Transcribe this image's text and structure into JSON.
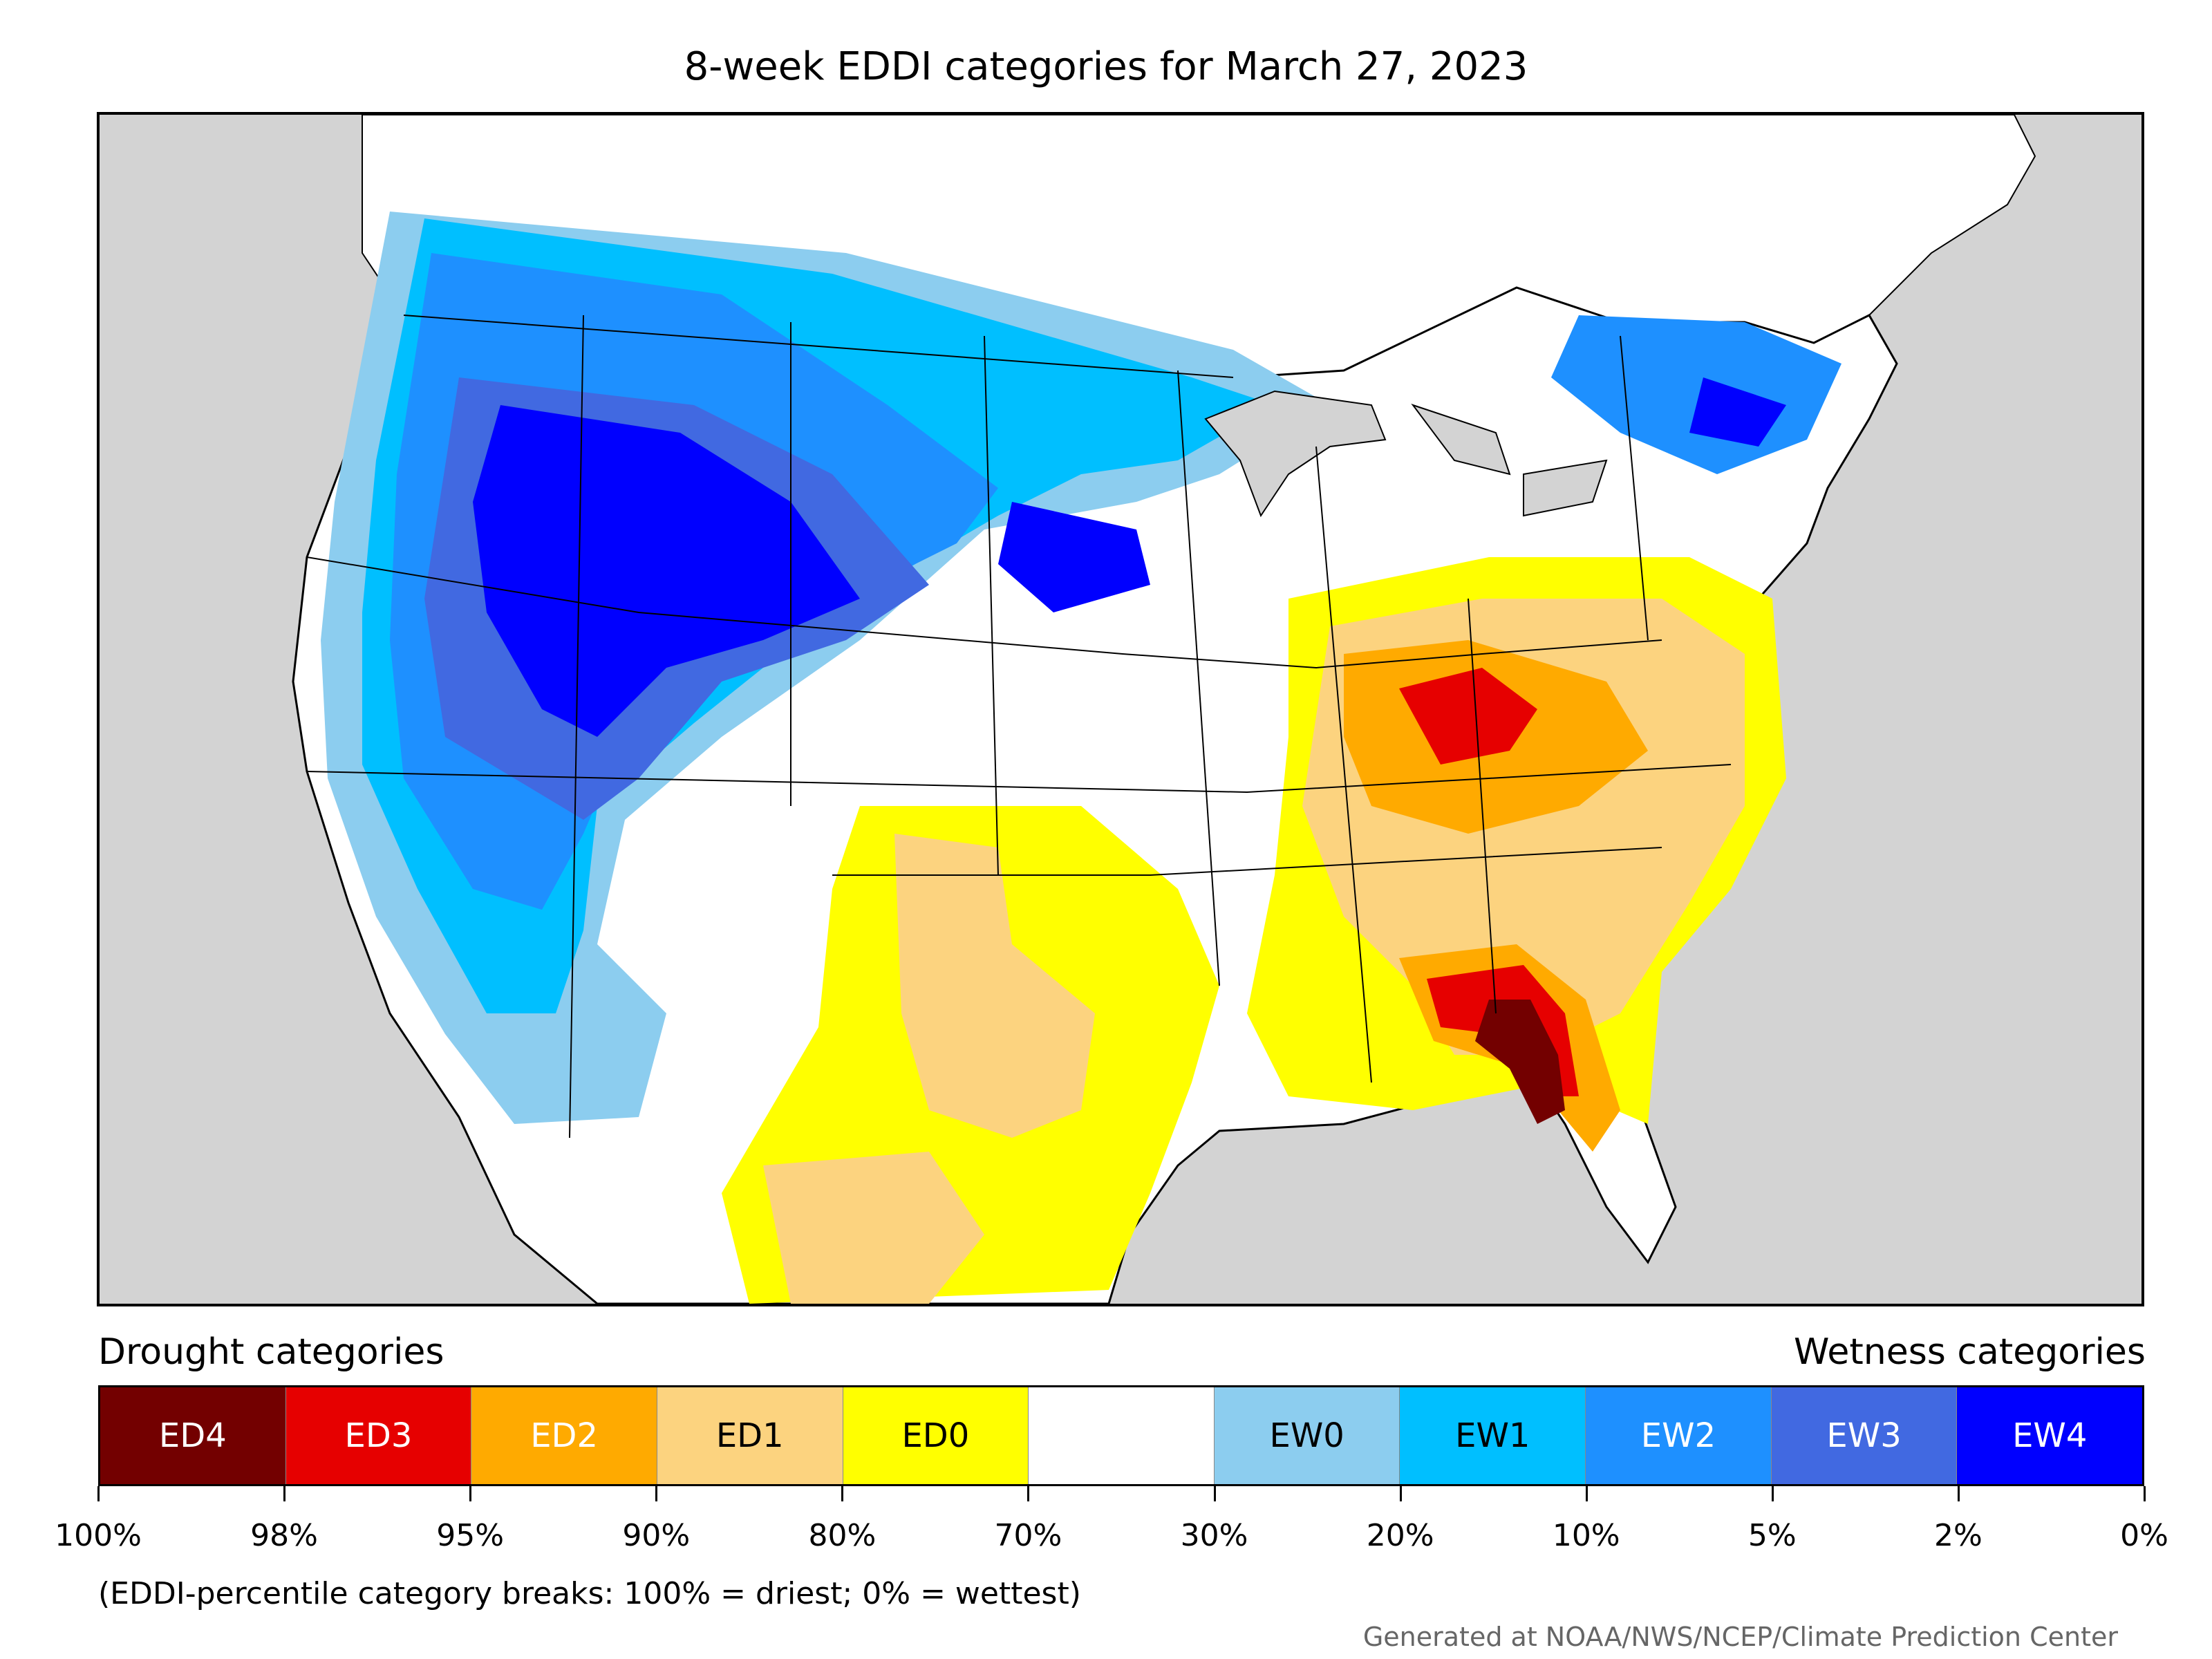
{
  "title": "8-week EDDI categories for March 27, 2023",
  "legend": {
    "drought_heading": "Drought categories",
    "wetness_heading": "Wetness categories",
    "categories": [
      {
        "label": "ED4",
        "color": "#730000",
        "text_color": "#ffffff"
      },
      {
        "label": "ED3",
        "color": "#e60000",
        "text_color": "#ffffff"
      },
      {
        "label": "ED2",
        "color": "#ffaa00",
        "text_color": "#ffffff"
      },
      {
        "label": "ED1",
        "color": "#fcd37f",
        "text_color": "#000000"
      },
      {
        "label": "ED0",
        "color": "#ffff00",
        "text_color": "#000000"
      },
      {
        "label": "",
        "color": "#ffffff",
        "text_color": "#000000"
      },
      {
        "label": "EW0",
        "color": "#8ccdef",
        "text_color": "#000000"
      },
      {
        "label": "EW1",
        "color": "#00bfff",
        "text_color": "#000000"
      },
      {
        "label": "EW2",
        "color": "#1e90ff",
        "text_color": "#ffffff"
      },
      {
        "label": "EW3",
        "color": "#4169e1",
        "text_color": "#ffffff"
      },
      {
        "label": "EW4",
        "color": "#0000ff",
        "text_color": "#ffffff"
      }
    ],
    "tick_labels": [
      "100%",
      "98%",
      "95%",
      "90%",
      "80%",
      "70%",
      "30%",
      "20%",
      "10%",
      "5%",
      "2%",
      "0%"
    ]
  },
  "footnote": "(EDDI-percentile category breaks: 100% = driest; 0% = wettest)",
  "credit": "Generated at NOAA/NWS/NCEP/Climate Prediction Center",
  "colors": {
    "ocean": "#d3d3d3",
    "land": "#ffffff",
    "border": "#000000"
  }
}
